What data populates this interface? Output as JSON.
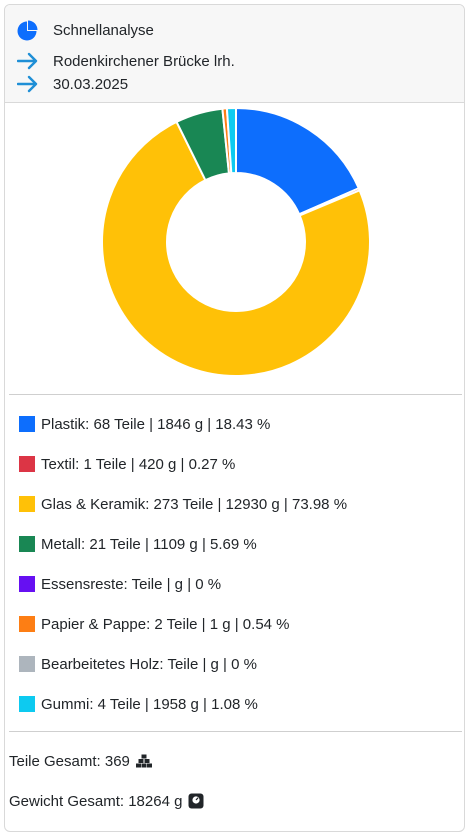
{
  "header": {
    "title": "Schnellanalyse",
    "location": "Rodenkirchener Brücke lrh.",
    "date": "30.03.2025",
    "icons": {
      "title": "pie-chart-icon",
      "location": "arrow-right-icon",
      "date": "arrow-right-icon"
    },
    "colors": {
      "pie_icon": "#0d6efd",
      "arrow_icon": "#1f8fd6"
    }
  },
  "chart_data": {
    "type": "pie",
    "donut": true,
    "series": [
      {
        "name": "Plastik",
        "value": 18.43,
        "color": "#0d6efd"
      },
      {
        "name": "Textil",
        "value": 0.27,
        "color": "#dc3545"
      },
      {
        "name": "Glas & Keramik",
        "value": 73.98,
        "color": "#ffc107"
      },
      {
        "name": "Metall",
        "value": 5.69,
        "color": "#198754"
      },
      {
        "name": "Essensreste",
        "value": 0,
        "color": "#6610f2"
      },
      {
        "name": "Papier & Pappe",
        "value": 0.54,
        "color": "#fd7e14"
      },
      {
        "name": "Bearbeitetes Holz",
        "value": 0,
        "color": "#adb5bd"
      },
      {
        "name": "Gummi",
        "value": 1.08,
        "color": "#0dcaf0"
      }
    ]
  },
  "legend": [
    {
      "label": "Plastik: 68 Teile | 1846 g | 18.43 %",
      "color": "#0d6efd"
    },
    {
      "label": "Textil: 1 Teile | 420 g | 0.27 %",
      "color": "#dc3545"
    },
    {
      "label": "Glas & Keramik: 273 Teile | 12930 g | 73.98 %",
      "color": "#ffc107"
    },
    {
      "label": "Metall: 21 Teile | 1109 g | 5.69 %",
      "color": "#198754"
    },
    {
      "label": "Essensreste: Teile | g | 0 %",
      "color": "#6610f2"
    },
    {
      "label": "Papier & Pappe: 2 Teile | 1 g | 0.54 %",
      "color": "#fd7e14"
    },
    {
      "label": "Bearbeitetes Holz: Teile | g | 0 %",
      "color": "#adb5bd"
    },
    {
      "label": "Gummi: 4 Teile | 1958 g | 1.08 %",
      "color": "#0dcaf0"
    }
  ],
  "totals": {
    "parts": "Teile Gesamt: 369",
    "weight": "Gewicht Gesamt: 18264 g",
    "icons": {
      "parts": "boxes-stack-icon",
      "weight": "weight-scale-icon"
    }
  }
}
